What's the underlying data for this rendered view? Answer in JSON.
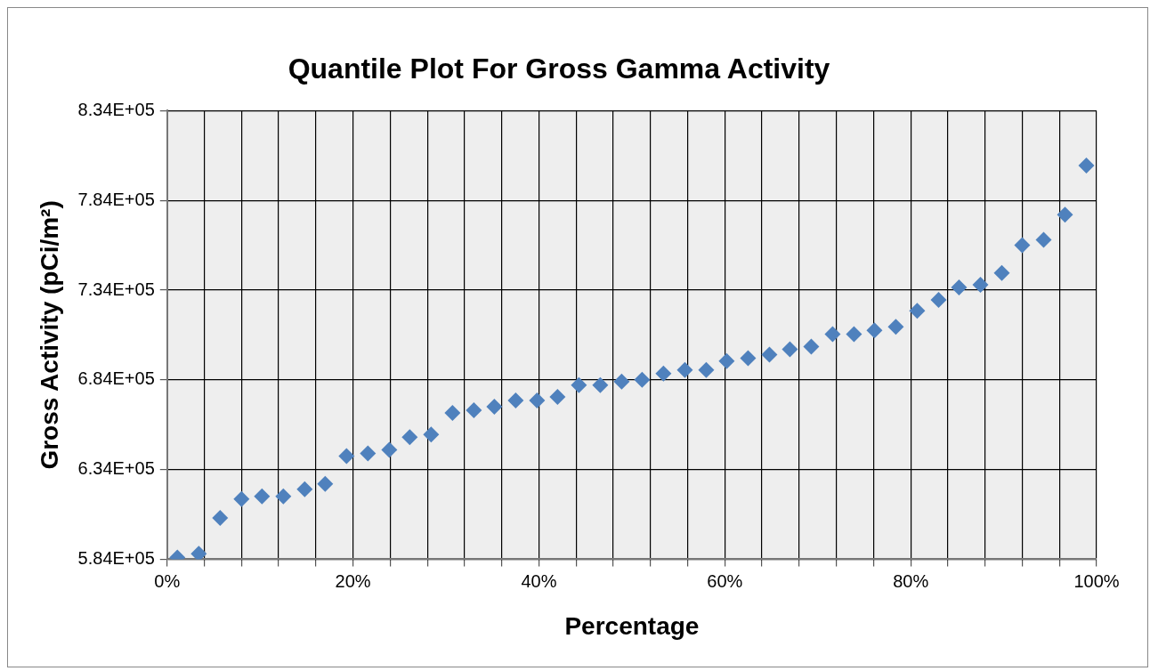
{
  "chart_data": {
    "type": "scatter",
    "title": "Quantile Plot For Gross Gamma Activity",
    "xlabel": "Percentage",
    "ylabel": "Gross Activity (pCi/m²)",
    "x": [
      1.1,
      3.4,
      5.7,
      8.0,
      10.2,
      12.5,
      14.8,
      17.0,
      19.3,
      21.6,
      23.9,
      26.1,
      28.4,
      30.7,
      33.0,
      35.2,
      37.5,
      39.8,
      42.0,
      44.3,
      46.6,
      48.9,
      51.1,
      53.4,
      55.7,
      58.0,
      60.2,
      62.5,
      64.8,
      67.0,
      69.3,
      71.6,
      73.9,
      76.1,
      78.4,
      80.7,
      83.0,
      85.2,
      87.5,
      89.8,
      92.0,
      94.3,
      96.6,
      98.9
    ],
    "series": [
      {
        "color": "#4f81bd",
        "values": [
          585000,
          587000,
          607000,
          617500,
          619000,
          619000,
          623000,
          626000,
          641500,
          643000,
          645000,
          652000,
          653500,
          665500,
          667000,
          669000,
          672500,
          672500,
          674500,
          681000,
          681000,
          683000,
          684000,
          687500,
          689500,
          689500,
          694500,
          696000,
          698000,
          701000,
          702500,
          709500,
          709500,
          711500,
          713500,
          722500,
          728500,
          735500,
          737000,
          743500,
          759000,
          762000,
          776000,
          803500
        ]
      }
    ],
    "xlim": [
      0,
      100
    ],
    "xticks": [
      {
        "value": 0,
        "label": "0%"
      },
      {
        "value": 4,
        "label": null
      },
      {
        "value": 8,
        "label": null
      },
      {
        "value": 12,
        "label": null
      },
      {
        "value": 16,
        "label": null
      },
      {
        "value": 20,
        "label": "20%"
      },
      {
        "value": 24,
        "label": null
      },
      {
        "value": 28,
        "label": null
      },
      {
        "value": 32,
        "label": null
      },
      {
        "value": 36,
        "label": null
      },
      {
        "value": 40,
        "label": "40%"
      },
      {
        "value": 44,
        "label": null
      },
      {
        "value": 48,
        "label": null
      },
      {
        "value": 52,
        "label": null
      },
      {
        "value": 56,
        "label": null
      },
      {
        "value": 60,
        "label": "60%"
      },
      {
        "value": 64,
        "label": null
      },
      {
        "value": 68,
        "label": null
      },
      {
        "value": 72,
        "label": null
      },
      {
        "value": 76,
        "label": null
      },
      {
        "value": 80,
        "label": "80%"
      },
      {
        "value": 84,
        "label": null
      },
      {
        "value": 88,
        "label": null
      },
      {
        "value": 92,
        "label": null
      },
      {
        "value": 96,
        "label": null
      },
      {
        "value": 100,
        "label": "100%"
      }
    ],
    "ylim": [
      584000,
      834000
    ],
    "yticks": [
      {
        "value": 584000,
        "label": "5.84E+05"
      },
      {
        "value": 634000,
        "label": "6.34E+05"
      },
      {
        "value": 684000,
        "label": "6.84E+05"
      },
      {
        "value": 734000,
        "label": "7.34E+05"
      },
      {
        "value": 784000,
        "label": "7.84E+05"
      },
      {
        "value": 834000,
        "label": "8.34E+05"
      }
    ],
    "grid": true,
    "legend": false,
    "marker": "diamond"
  }
}
